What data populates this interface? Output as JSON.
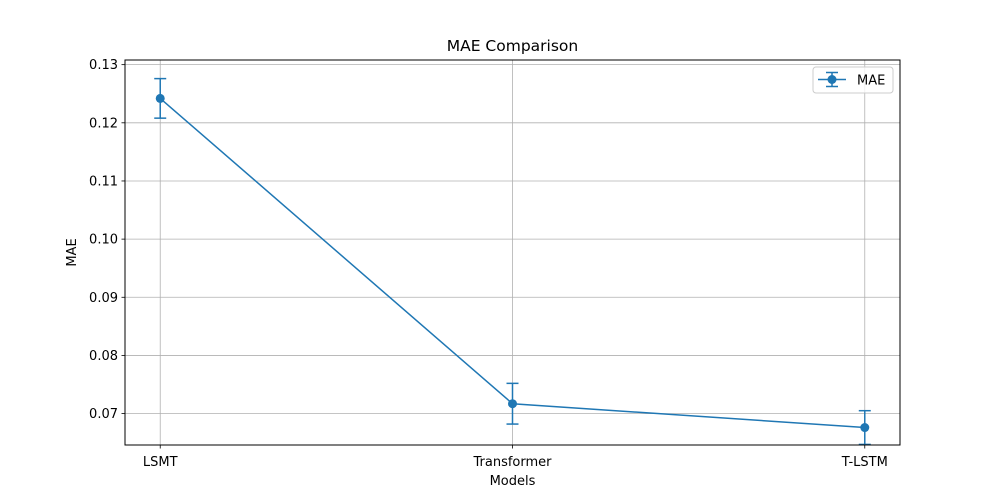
{
  "chart_data": {
    "type": "line",
    "title": "MAE Comparison",
    "xlabel": "Models",
    "ylabel": "MAE",
    "categories": [
      "LSMT",
      "Transformer",
      "T-LSTM"
    ],
    "series": [
      {
        "name": "MAE",
        "values": [
          0.1242,
          0.0717,
          0.0676
        ],
        "errors": [
          0.0034,
          0.0035,
          0.0029
        ]
      }
    ],
    "yticks": [
      0.07,
      0.08,
      0.09,
      0.1,
      0.11,
      0.12,
      0.13
    ],
    "ytick_labels": [
      "0.07",
      "0.08",
      "0.09",
      "0.10",
      "0.11",
      "0.12",
      "0.13"
    ],
    "ylim": [
      0.0646,
      0.1308
    ],
    "grid": true,
    "legend": {
      "position": "top-right",
      "label": "MAE"
    },
    "colors": {
      "line": "#1f77b4",
      "grid": "#b0b0b0",
      "axes": "#000000"
    }
  }
}
